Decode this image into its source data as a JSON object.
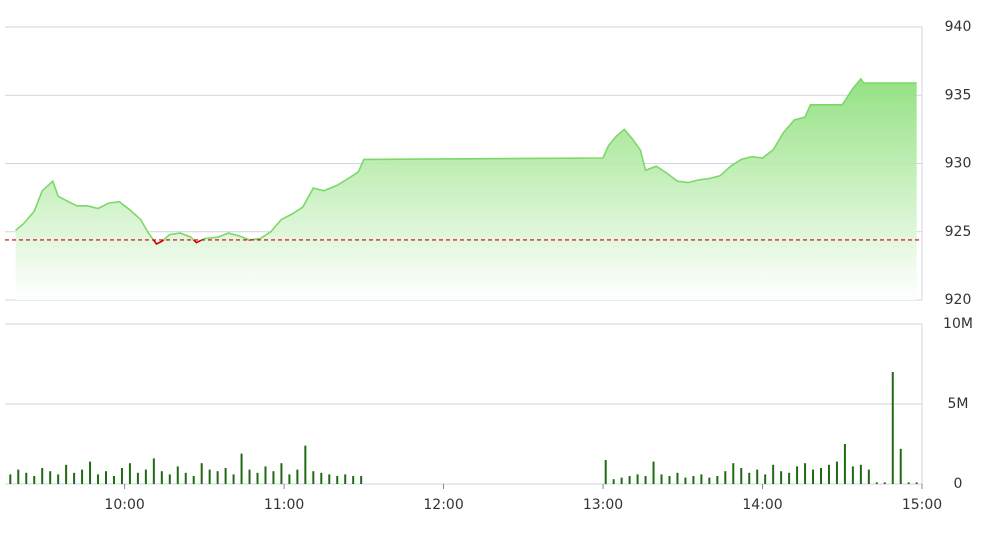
{
  "chart_data": [
    {
      "type": "line",
      "x": [
        559,
        562,
        566,
        569,
        573,
        575,
        578,
        582,
        586,
        590,
        594,
        598,
        602,
        606,
        609,
        612,
        614,
        617,
        621,
        625,
        627,
        630,
        635,
        639,
        643,
        647,
        651,
        655,
        659,
        663,
        667,
        671,
        675,
        680,
        685,
        688,
        690,
        780,
        782,
        785,
        788,
        791,
        794,
        796,
        800,
        804,
        808,
        812,
        816,
        820,
        824,
        828,
        832,
        836,
        840,
        844,
        848,
        852,
        856,
        858,
        870,
        874,
        877,
        878,
        898
      ],
      "series": [
        {
          "color": "#7dd86a",
          "values": [
            925.1,
            925.6,
            926.5,
            928.0,
            928.7,
            927.6,
            927.3,
            926.9,
            926.9,
            926.7,
            927.1,
            927.2,
            926.6,
            925.9,
            924.9,
            924.1,
            924.3,
            924.8,
            924.9,
            924.6,
            924.2,
            924.5,
            924.6,
            924.9,
            924.7,
            924.4,
            924.5,
            925.0,
            925.9,
            926.3,
            926.8,
            928.2,
            928.0,
            928.4,
            929.0,
            929.4,
            930.3,
            930.4,
            931.3,
            932.0,
            932.5,
            931.8,
            931.0,
            929.5,
            929.8,
            929.3,
            928.7,
            928.6,
            928.8,
            928.9,
            929.1,
            929.8,
            930.3,
            930.5,
            930.4,
            931.0,
            932.3,
            933.2,
            933.4,
            934.3,
            934.3,
            935.5,
            936.2,
            935.9,
            935.9
          ]
        }
      ],
      "reference": 924.4,
      "reference_color": "#cc0000",
      "below_color": "#cc0000",
      "xlim": [
        555,
        900
      ],
      "ylim": [
        920,
        940
      ],
      "yticks": [
        920,
        925,
        930,
        935,
        940
      ],
      "grid": true
    },
    {
      "type": "bar",
      "x": [
        557,
        560,
        563,
        566,
        569,
        572,
        575,
        578,
        581,
        584,
        587,
        590,
        593,
        596,
        599,
        602,
        605,
        608,
        611,
        614,
        617,
        620,
        623,
        626,
        629,
        632,
        635,
        638,
        641,
        644,
        647,
        650,
        653,
        656,
        659,
        662,
        665,
        668,
        671,
        674,
        677,
        680,
        683,
        686,
        689,
        781,
        784,
        787,
        790,
        793,
        796,
        799,
        802,
        805,
        808,
        811,
        814,
        817,
        820,
        823,
        826,
        829,
        832,
        835,
        838,
        841,
        844,
        847,
        850,
        853,
        856,
        859,
        862,
        865,
        868,
        871,
        874,
        877,
        880,
        883,
        886,
        889,
        892,
        895,
        898
      ],
      "series": [
        {
          "color": "#1f6b12",
          "values": [
            0.6,
            0.9,
            0.7,
            0.5,
            1.0,
            0.8,
            0.6,
            1.2,
            0.7,
            0.9,
            1.4,
            0.6,
            0.8,
            0.5,
            1.0,
            1.3,
            0.7,
            0.9,
            1.6,
            0.8,
            0.6,
            1.1,
            0.7,
            0.5,
            1.3,
            0.9,
            0.8,
            1.0,
            0.6,
            1.9,
            0.9,
            0.7,
            1.1,
            0.8,
            1.3,
            0.6,
            0.9,
            2.4,
            0.8,
            0.7,
            0.6,
            0.5,
            0.6,
            0.5,
            0.5,
            1.5,
            0.3,
            0.4,
            0.5,
            0.6,
            0.5,
            1.4,
            0.6,
            0.5,
            0.7,
            0.4,
            0.5,
            0.6,
            0.4,
            0.5,
            0.8,
            1.3,
            1.0,
            0.7,
            0.9,
            0.6,
            1.2,
            0.8,
            0.7,
            1.1,
            1.3,
            0.9,
            1.0,
            1.2,
            1.4,
            2.5,
            1.1,
            1.2,
            0.9,
            0.1,
            0.1,
            7.0,
            2.2,
            0.1,
            0.1
          ]
        }
      ],
      "xlim": [
        555,
        900
      ],
      "xticks": [
        {
          "value": 600,
          "label": "10:00"
        },
        {
          "value": 660,
          "label": "11:00"
        },
        {
          "value": 720,
          "label": "12:00"
        },
        {
          "value": 780,
          "label": "13:00"
        },
        {
          "value": 840,
          "label": "14:00"
        },
        {
          "value": 900,
          "label": "15:00"
        }
      ],
      "ylim": [
        0,
        10
      ],
      "yticks": [
        0,
        {
          "value": 5,
          "label": "5M"
        },
        {
          "value": 10,
          "label": "10M"
        }
      ],
      "grid": true
    }
  ]
}
